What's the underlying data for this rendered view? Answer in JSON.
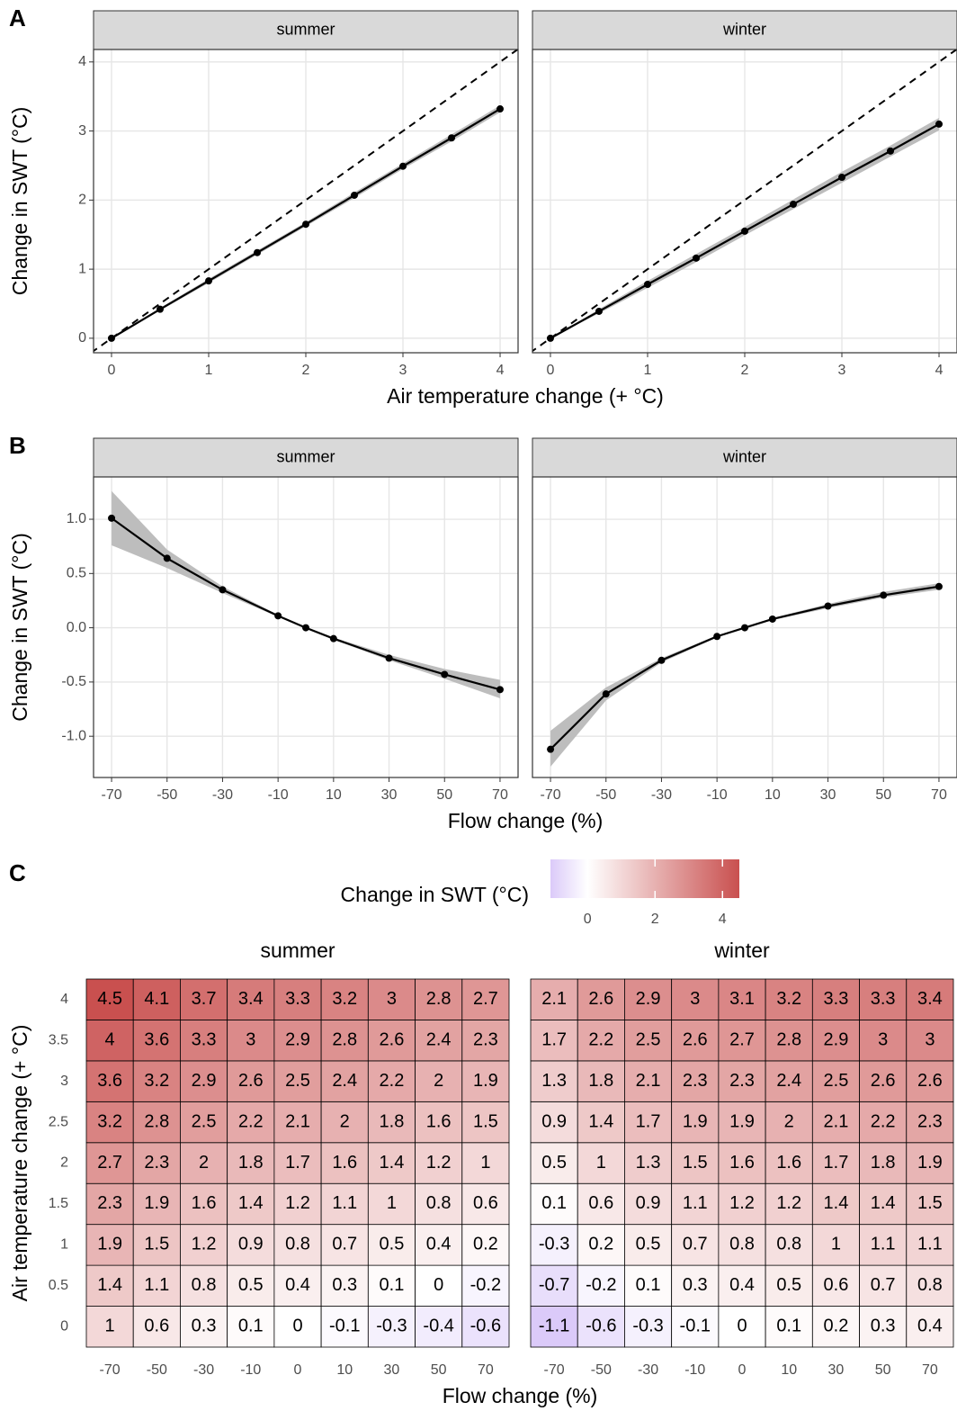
{
  "chart_data": [
    {
      "type": "line",
      "panel_label": "A",
      "xlabel": "Air temperature change (+ °C)",
      "ylabel": "Change in SWT (°C)",
      "xlim": [
        -0.185,
        4.185
      ],
      "ylim": [
        -0.21,
        4.18
      ],
      "xticks": [
        0,
        1,
        2,
        3,
        4
      ],
      "yticks": [
        0,
        1,
        2,
        3,
        4
      ],
      "grid": true,
      "identity_line": true,
      "color": "#000000",
      "band_color": "#bdbdbd",
      "facets": [
        {
          "title": "summer",
          "x": [
            0,
            0.5,
            1,
            1.5,
            2,
            2.5,
            3,
            3.5,
            4
          ],
          "values": [
            0,
            0.42,
            0.83,
            1.24,
            1.65,
            2.07,
            2.49,
            2.9,
            3.32
          ],
          "ci_low": [
            0,
            0.4,
            0.8,
            1.21,
            1.62,
            2.03,
            2.45,
            2.85,
            3.27
          ],
          "ci_high": [
            0,
            0.44,
            0.86,
            1.27,
            1.68,
            2.11,
            2.53,
            2.95,
            3.37
          ]
        },
        {
          "title": "winter",
          "x": [
            0,
            0.5,
            1,
            1.5,
            2,
            2.5,
            3,
            3.5,
            4
          ],
          "values": [
            0,
            0.39,
            0.78,
            1.16,
            1.55,
            1.94,
            2.33,
            2.71,
            3.1
          ],
          "ci_low": [
            0,
            0.36,
            0.73,
            1.1,
            1.49,
            1.87,
            2.25,
            2.63,
            3.01
          ],
          "ci_high": [
            0,
            0.42,
            0.83,
            1.22,
            1.61,
            2.01,
            2.41,
            2.79,
            3.19
          ]
        }
      ]
    },
    {
      "type": "line",
      "panel_label": "B",
      "xlabel": "Flow change (%)",
      "ylabel": "Change in SWT (°C)",
      "xlim": [
        -76.5,
        76.5
      ],
      "ylim": [
        -1.38,
        1.39
      ],
      "xticks": [
        -70,
        -50,
        -30,
        -10,
        10,
        30,
        50,
        70
      ],
      "yticks": [
        {
          "value": -1.0,
          "label": "-1.0"
        },
        -0.5,
        {
          "value": 0.0,
          "label": "0.0"
        },
        0.5,
        {
          "value": 1.0,
          "label": "1.0"
        }
      ],
      "grid": true,
      "identity_line": false,
      "color": "#000000",
      "band_color": "#bdbdbd",
      "facets": [
        {
          "title": "summer",
          "x": [
            -70,
            -50,
            -30,
            -10,
            0,
            10,
            30,
            50,
            70
          ],
          "values": [
            1.01,
            0.64,
            0.35,
            0.11,
            0,
            -0.1,
            -0.28,
            -0.43,
            -0.57
          ],
          "ci_low": [
            0.76,
            0.55,
            0.32,
            0.1,
            0,
            -0.11,
            -0.3,
            -0.47,
            -0.65
          ],
          "ci_high": [
            1.26,
            0.72,
            0.38,
            0.12,
            0,
            -0.09,
            -0.25,
            -0.38,
            -0.48
          ]
        },
        {
          "title": "winter",
          "x": [
            -70,
            -50,
            -30,
            -10,
            0,
            10,
            30,
            50,
            70
          ],
          "values": [
            -1.12,
            -0.61,
            -0.3,
            -0.08,
            0,
            0.08,
            0.2,
            0.3,
            0.38
          ],
          "ci_low": [
            -1.28,
            -0.67,
            -0.32,
            -0.09,
            0,
            0.07,
            0.18,
            0.28,
            0.35
          ],
          "ci_high": [
            -0.95,
            -0.55,
            -0.28,
            -0.07,
            0,
            0.09,
            0.22,
            0.33,
            0.41
          ]
        }
      ]
    },
    {
      "type": "heatmap",
      "panel_label": "C",
      "xlabel": "Flow change (%)",
      "ylabel": "Air temperature change (+ °C)",
      "x": [
        -70,
        -50,
        -30,
        -10,
        0,
        10,
        30,
        50,
        70
      ],
      "y": [
        0,
        0.5,
        1,
        1.5,
        2,
        2.5,
        3,
        3.5,
        4
      ],
      "colorbar": {
        "title": "Change in SWT (°C)",
        "ticks": [
          0,
          2,
          4
        ]
      },
      "colors": {
        "low": "#6a28e8",
        "mid": "#ffffff",
        "high": "#c9504f"
      },
      "facets": [
        {
          "title": "summer",
          "values": [
            [
              1,
              0.6,
              0.3,
              0.1,
              0,
              -0.1,
              -0.3,
              -0.4,
              -0.6
            ],
            [
              1.4,
              1.1,
              0.8,
              0.5,
              0.4,
              0.3,
              0.1,
              0,
              -0.2
            ],
            [
              1.9,
              1.5,
              1.2,
              0.9,
              0.8,
              0.7,
              0.5,
              0.4,
              0.2
            ],
            [
              2.3,
              1.9,
              1.6,
              1.4,
              1.2,
              1.1,
              1,
              0.8,
              0.6
            ],
            [
              2.7,
              2.3,
              2,
              1.8,
              1.7,
              1.6,
              1.4,
              1.2,
              1
            ],
            [
              3.2,
              2.8,
              2.5,
              2.2,
              2.1,
              2,
              1.8,
              1.6,
              1.5
            ],
            [
              3.6,
              3.2,
              2.9,
              2.6,
              2.5,
              2.4,
              2.2,
              2,
              1.9
            ],
            [
              4,
              3.6,
              3.3,
              3,
              2.9,
              2.8,
              2.6,
              2.4,
              2.3
            ],
            [
              4.5,
              4.1,
              3.7,
              3.4,
              3.3,
              3.2,
              3,
              2.8,
              2.7
            ]
          ]
        },
        {
          "title": "winter",
          "values": [
            [
              -1.1,
              -0.6,
              -0.3,
              -0.1,
              0,
              0.1,
              0.2,
              0.3,
              0.4
            ],
            [
              -0.7,
              -0.2,
              0.1,
              0.3,
              0.4,
              0.5,
              0.6,
              0.7,
              0.8
            ],
            [
              -0.3,
              0.2,
              0.5,
              0.7,
              0.8,
              0.8,
              1,
              1.1,
              1.1
            ],
            [
              0.1,
              0.6,
              0.9,
              1.1,
              1.2,
              1.2,
              1.4,
              1.4,
              1.5
            ],
            [
              0.5,
              1,
              1.3,
              1.5,
              1.6,
              1.6,
              1.7,
              1.8,
              1.9
            ],
            [
              0.9,
              1.4,
              1.7,
              1.9,
              1.9,
              2,
              2.1,
              2.2,
              2.3
            ],
            [
              1.3,
              1.8,
              2.1,
              2.3,
              2.3,
              2.4,
              2.5,
              2.6,
              2.6
            ],
            [
              1.7,
              2.2,
              2.5,
              2.6,
              2.7,
              2.8,
              2.9,
              3,
              3
            ],
            [
              2.1,
              2.6,
              2.9,
              3,
              3.1,
              3.2,
              3.3,
              3.3,
              3.4
            ]
          ]
        }
      ]
    }
  ]
}
